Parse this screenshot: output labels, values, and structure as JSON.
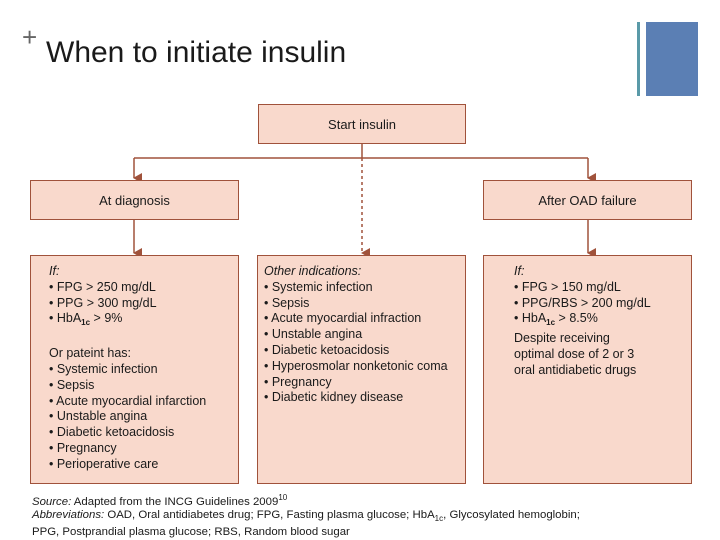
{
  "header": {
    "title": "When to initiate insulin",
    "bullet": "+"
  },
  "start": {
    "label": "Start insulin"
  },
  "left": {
    "heading": "At diagnosis",
    "if_label": "If:",
    "criteria": [
      "• FPG > 250 mg/dL",
      "• PPG > 300 mg/dL"
    ],
    "hba1c_prefix": "• HbA",
    "hba1c_sub": "1c",
    "hba1c_suffix": " > 9%",
    "or_label": "Or pateint has:",
    "conditions": [
      "• Systemic infection",
      "• Sepsis",
      "• Acute myocardial infarction",
      "• Unstable angina",
      "• Diabetic ketoacidosis",
      "• Pregnancy",
      "• Perioperative care"
    ]
  },
  "middle": {
    "heading": "Other indications:",
    "items": [
      "• Systemic infection",
      "• Sepsis",
      "• Acute myocardial infraction",
      "• Unstable angina",
      "• Diabetic ketoacidosis",
      "• Hyperosmolar nonketonic coma",
      "• Pregnancy",
      "• Diabetic kidney disease"
    ]
  },
  "right": {
    "heading": "After OAD failure",
    "if_label": "If:",
    "criteria": [
      "• FPG > 150 mg/dL",
      "• PPG/RBS > 200 mg/dL"
    ],
    "hba1c_prefix": "• HbA",
    "hba1c_sub": "1c",
    "hba1c_suffix": " > 8.5%",
    "despite": [
      "Despite receiving",
      "optimal dose of 2 or 3",
      "oral antidiabetic drugs"
    ]
  },
  "footer": {
    "source_label": "Source:",
    "source_text": " Adapted from the INCG Guidelines 2009",
    "source_sup": "10",
    "abbrev_label": "Abbreviations:",
    "abbrev_text_1": " OAD, Oral antidiabetes drug; FPG, Fasting plasma glucose; HbA",
    "abbrev_sub": "1c",
    "abbrev_text_2": ", Glycosylated hemoglobin;",
    "abbrev_line2": "PPG, Postprandial plasma glucose; RBS, Random blood sugar"
  },
  "colors": {
    "box_fill": "#f9d9cc",
    "box_border": "#a0523b",
    "arrow": "#a0523b",
    "accent_teal": "#5a9aa8",
    "accent_blue": "#5b7fb4"
  }
}
